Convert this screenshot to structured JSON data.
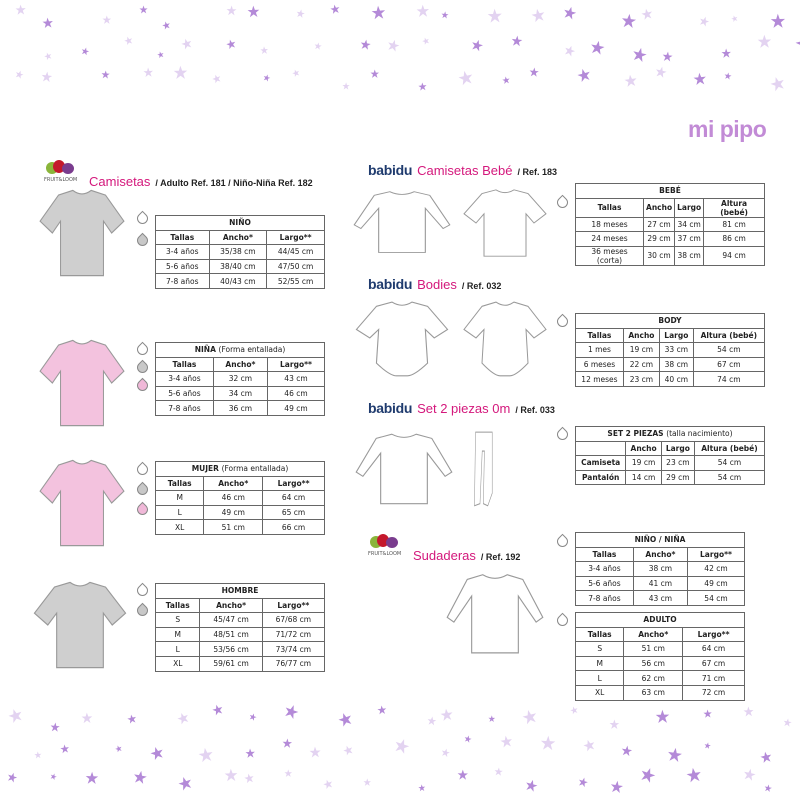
{
  "logo": "mi pipo",
  "colors": {
    "accent": "#d4187c",
    "stars": "#b48ad8",
    "swatch_white": "#ffffff",
    "swatch_grey": "#c8c8c8",
    "swatch_pink": "#f0b8d8",
    "shirt_grey": "#cfcfcf",
    "shirt_pink": "#f3c2de"
  },
  "sections": {
    "camisetas": {
      "brand": "FRUIT&LOOM",
      "title": "Camisetas",
      "ref": "/ Adulto Ref. 181 / Niño-Niña Ref. 182"
    },
    "camisetas_bebe": {
      "brand": "babidu",
      "title": "Camisetas Bebé",
      "ref": "/ Ref. 183"
    },
    "bodies": {
      "brand": "babidu",
      "title": "Bodies",
      "ref": "/ Ref. 032"
    },
    "set2": {
      "brand": "babidu",
      "title": "Set 2 piezas 0m",
      "ref": "/ Ref. 033"
    },
    "sudaderas": {
      "brand": "FRUIT&LOOM",
      "title": "Sudaderas",
      "ref": "/ Ref. 192"
    }
  },
  "tables": {
    "nino": {
      "title": "NIÑO",
      "note": "",
      "headers": [
        "Tallas",
        "Ancho*",
        "Largo**"
      ],
      "rows": [
        [
          "3-4 años",
          "35/38 cm",
          "44/45 cm"
        ],
        [
          "5-6 años",
          "38/40 cm",
          "47/50 cm"
        ],
        [
          "7-8 años",
          "40/43 cm",
          "52/55 cm"
        ]
      ]
    },
    "nina": {
      "title": "NIÑA",
      "note": "(Forma entallada)",
      "headers": [
        "Tallas",
        "Ancho*",
        "Largo**"
      ],
      "rows": [
        [
          "3-4 años",
          "32 cm",
          "43 cm"
        ],
        [
          "5-6 años",
          "34 cm",
          "46 cm"
        ],
        [
          "7-8 años",
          "36 cm",
          "49 cm"
        ]
      ]
    },
    "mujer": {
      "title": "MUJER",
      "note": "(Forma entallada)",
      "headers": [
        "Tallas",
        "Ancho*",
        "Largo**"
      ],
      "rows": [
        [
          "M",
          "46 cm",
          "64 cm"
        ],
        [
          "L",
          "49 cm",
          "65 cm"
        ],
        [
          "XL",
          "51 cm",
          "66 cm"
        ]
      ]
    },
    "hombre": {
      "title": "HOMBRE",
      "note": "",
      "headers": [
        "Tallas",
        "Ancho*",
        "Largo**"
      ],
      "rows": [
        [
          "S",
          "45/47 cm",
          "67/68 cm"
        ],
        [
          "M",
          "48/51 cm",
          "71/72 cm"
        ],
        [
          "L",
          "53/56 cm",
          "73/74 cm"
        ],
        [
          "XL",
          "59/61 cm",
          "76/77 cm"
        ]
      ]
    },
    "bebe": {
      "title": "BEBÉ",
      "note": "",
      "headers": [
        "Tallas",
        "Ancho",
        "Largo",
        "Altura (bebé)"
      ],
      "rows": [
        [
          "18 meses",
          "27 cm",
          "34 cm",
          "81 cm"
        ],
        [
          "24 meses",
          "29 cm",
          "37 cm",
          "86 cm"
        ],
        [
          "36 meses (corta)",
          "30 cm",
          "38 cm",
          "94 cm"
        ]
      ]
    },
    "body": {
      "title": "BODY",
      "note": "",
      "headers": [
        "Tallas",
        "Ancho",
        "Largo",
        "Altura (bebé)"
      ],
      "rows": [
        [
          "1 mes",
          "19 cm",
          "33 cm",
          "54 cm"
        ],
        [
          "6 meses",
          "22 cm",
          "38 cm",
          "67 cm"
        ],
        [
          "12 meses",
          "23 cm",
          "40 cm",
          "74 cm"
        ]
      ]
    },
    "set2": {
      "title": "SET 2 PIEZAS",
      "note": "(talla nacimiento)",
      "headers": [
        "",
        "Ancho",
        "Largo",
        "Altura (bebé)"
      ],
      "rows": [
        [
          "Camiseta",
          "19 cm",
          "23 cm",
          "54 cm"
        ],
        [
          "Pantalón",
          "14 cm",
          "29 cm",
          "54 cm"
        ]
      ]
    },
    "sud_nino": {
      "title": "NIÑO / NIÑA",
      "note": "",
      "headers": [
        "Tallas",
        "Ancho*",
        "Largo**"
      ],
      "rows": [
        [
          "3-4 años",
          "38 cm",
          "42 cm"
        ],
        [
          "5-6 años",
          "41 cm",
          "49 cm"
        ],
        [
          "7-8 años",
          "43 cm",
          "54 cm"
        ]
      ]
    },
    "sud_adulto": {
      "title": "ADULTO",
      "note": "",
      "headers": [
        "Tallas",
        "Ancho*",
        "Largo**"
      ],
      "rows": [
        [
          "S",
          "51 cm",
          "64 cm"
        ],
        [
          "M",
          "56 cm",
          "67 cm"
        ],
        [
          "L",
          "62 cm",
          "71 cm"
        ],
        [
          "XL",
          "63 cm",
          "72 cm"
        ]
      ]
    }
  }
}
